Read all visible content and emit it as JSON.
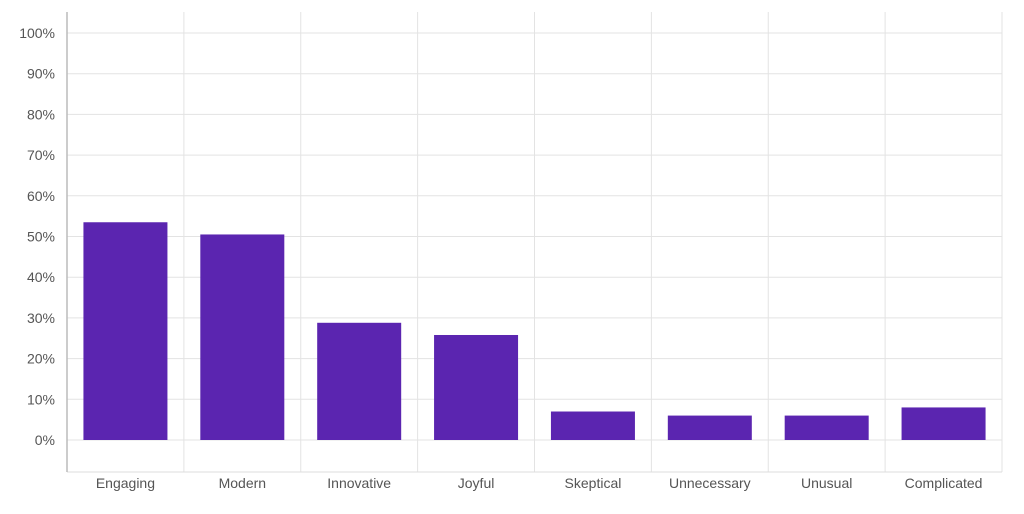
{
  "chart_data": {
    "type": "bar",
    "categories": [
      "Engaging",
      "Modern",
      "Innovative",
      "Joyful",
      "Skeptical",
      "Unnecessary",
      "Unusual",
      "Complicated"
    ],
    "values": [
      53.5,
      50.5,
      28.8,
      25.8,
      7,
      6,
      6,
      8
    ],
    "y_ticks": [
      "100%",
      "90%",
      "80%",
      "70%",
      "60%",
      "50%",
      "40%",
      "30%",
      "20%",
      "10%",
      "0%"
    ],
    "ylim": [
      -8,
      100
    ],
    "bar_color": "#5b25b0",
    "grid": true,
    "title": "",
    "xlabel": "",
    "ylabel": ""
  }
}
